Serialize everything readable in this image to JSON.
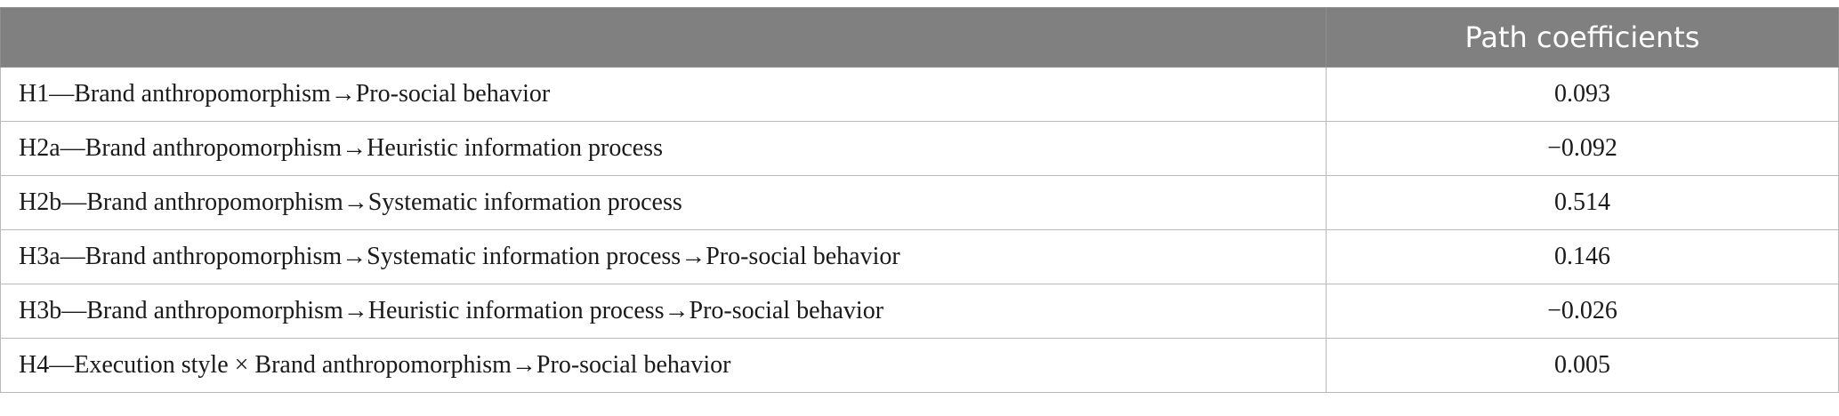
{
  "table": {
    "headers": [
      "",
      "Path coefficients"
    ],
    "rows": [
      {
        "hypothesis": "H1—Brand anthropomorphism→Pro-social behavior",
        "coefficient": "0.093"
      },
      {
        "hypothesis": "H2a—Brand anthropomorphism→Heuristic information process",
        "coefficient": "−0.092"
      },
      {
        "hypothesis": "H2b—Brand anthropomorphism→Systematic information process",
        "coefficient": "0.514"
      },
      {
        "hypothesis": "H3a—Brand anthropomorphism→Systematic information process→Pro-social behavior",
        "coefficient": "0.146"
      },
      {
        "hypothesis": "H3b—Brand anthropomorphism→Heuristic information process→Pro-social behavior",
        "coefficient": "−0.026"
      },
      {
        "hypothesis": "H4—Execution style × Brand anthropomorphism→Pro-social behavior",
        "coefficient": "0.005"
      }
    ]
  },
  "colors": {
    "header_bg": "#7f807f",
    "header_text": "#ffffff",
    "border": "#b9b9b9"
  }
}
